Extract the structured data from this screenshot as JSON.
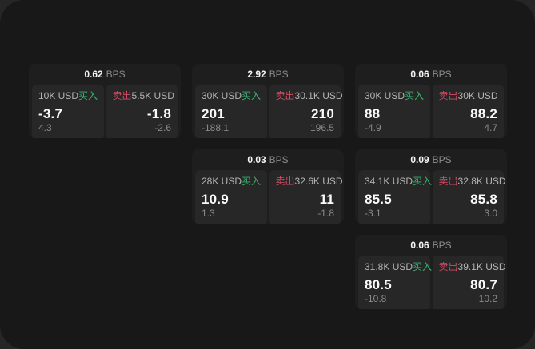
{
  "colors": {
    "buy": "#3bb371",
    "sell": "#d24b63",
    "canvas_bg": "#181818",
    "card_bg": "#1e1e1e",
    "subcard_bg": "#272727"
  },
  "cards": [
    {
      "bps": "0.62",
      "unit": "BPS",
      "buy": {
        "size": "10K USD",
        "label": "买入",
        "price": "-3.7",
        "change": "4.3"
      },
      "sell": {
        "label": "卖出",
        "size": "5.5K USD",
        "price": "-1.8",
        "change": "-2.6"
      }
    },
    {
      "bps": "2.92",
      "unit": "BPS",
      "buy": {
        "size": "30K USD",
        "label": "买入",
        "price": "201",
        "change": "-188.1"
      },
      "sell": {
        "label": "卖出",
        "size": "30.1K USD",
        "price": "210",
        "change": "196.5"
      }
    },
    {
      "bps": "0.06",
      "unit": "BPS",
      "buy": {
        "size": "30K USD",
        "label": "买入",
        "price": "88",
        "change": "-4.9"
      },
      "sell": {
        "label": "卖出",
        "size": "30K USD",
        "price": "88.2",
        "change": "4.7"
      }
    },
    {
      "bps": "0.03",
      "unit": "BPS",
      "buy": {
        "size": "28K USD",
        "label": "买入",
        "price": "10.9",
        "change": "1.3"
      },
      "sell": {
        "label": "卖出",
        "size": "32.6K USD",
        "price": "11",
        "change": "-1.8"
      }
    },
    {
      "bps": "0.09",
      "unit": "BPS",
      "buy": {
        "size": "34.1K USD",
        "label": "买入",
        "price": "85.5",
        "change": "-3.1"
      },
      "sell": {
        "label": "卖出",
        "size": "32.8K USD",
        "price": "85.8",
        "change": "3.0"
      }
    },
    {
      "bps": "0.06",
      "unit": "BPS",
      "buy": {
        "size": "31.8K USD",
        "label": "买入",
        "price": "80.5",
        "change": "-10.8"
      },
      "sell": {
        "label": "卖出",
        "size": "39.1K USD",
        "price": "80.7",
        "change": "10.2"
      }
    }
  ]
}
